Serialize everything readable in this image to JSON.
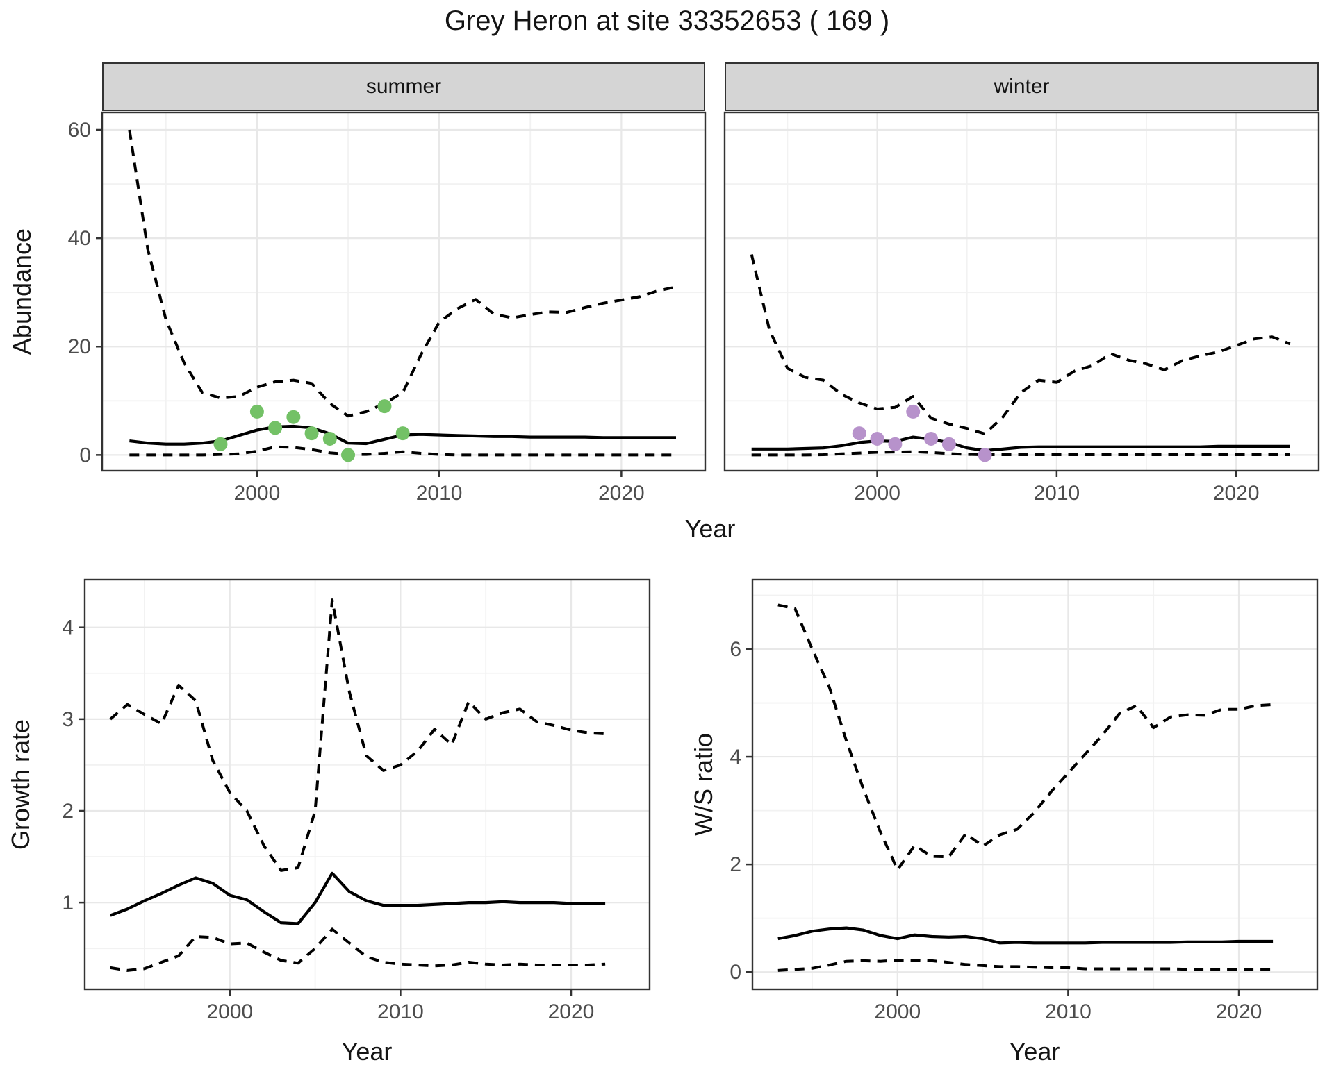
{
  "title": "Grey Heron at site 33352653 ( 169 )",
  "colors": {
    "summer_points": "#73c166",
    "winter_points": "#b792cb",
    "strip_bg": "#d5d5d5",
    "strip_border": "#333333",
    "panel_border": "#333333",
    "grid_major": "#e8e8e8",
    "grid_minor": "#f2f2f2",
    "line": "#000000",
    "tick_label": "#4d4d4d",
    "background": "#ffffff"
  },
  "chart_data": [
    {
      "type": "line",
      "facet_label": "summer",
      "xlabel": "Year",
      "ylabel": "Abundance",
      "xlim": [
        1991.5,
        2024.6
      ],
      "ylim": [
        -2.9,
        63.2
      ],
      "xticks": [
        2000,
        2010,
        2020
      ],
      "yticks": [
        0,
        20,
        40,
        60
      ],
      "xminor": [
        1995,
        2005,
        2015
      ],
      "yminor": [
        10,
        30,
        50
      ],
      "grid": "on",
      "legend_position": "none",
      "x": [
        1993,
        1994,
        1995,
        1996,
        1997,
        1998,
        1999,
        2000,
        2001,
        2002,
        2003,
        2004,
        2005,
        2006,
        2007,
        2008,
        2009,
        2010,
        2011,
        2012,
        2013,
        2014,
        2015,
        2016,
        2017,
        2018,
        2019,
        2020,
        2021,
        2022,
        2023
      ],
      "series": [
        {
          "name": "upper_ci",
          "style": "dashed",
          "values": [
            60,
            38,
            25,
            17,
            11.5,
            10.5,
            10.8,
            12.5,
            13.5,
            13.8,
            13.2,
            9.5,
            7.2,
            8.0,
            9.5,
            11.5,
            18.5,
            24.5,
            27.0,
            28.7,
            26.0,
            25.3,
            25.9,
            26.4,
            26.3,
            27.2,
            28.0,
            28.6,
            29.2,
            30.3,
            31.0
          ]
        },
        {
          "name": "mean",
          "style": "solid",
          "values": [
            2.6,
            2.2,
            2.0,
            2.0,
            2.2,
            2.6,
            3.6,
            4.6,
            5.2,
            5.3,
            5.0,
            3.9,
            2.2,
            2.1,
            2.9,
            3.7,
            3.8,
            3.7,
            3.6,
            3.5,
            3.4,
            3.4,
            3.3,
            3.3,
            3.3,
            3.3,
            3.2,
            3.2,
            3.2,
            3.2,
            3.2
          ]
        },
        {
          "name": "lower_ci",
          "style": "dashed",
          "values": [
            0,
            0,
            0,
            0,
            0,
            0.1,
            0.2,
            0.7,
            1.5,
            1.4,
            1.0,
            0.4,
            0.1,
            0.1,
            0.3,
            0.6,
            0.3,
            0.1,
            0,
            0,
            0,
            0,
            0,
            0,
            0,
            0,
            0,
            0,
            0,
            0,
            0
          ]
        }
      ],
      "points": {
        "name": "summer_observations",
        "color": "#73c166",
        "data": [
          [
            1998,
            2
          ],
          [
            2000,
            8
          ],
          [
            2001,
            5
          ],
          [
            2002,
            7
          ],
          [
            2003,
            4
          ],
          [
            2004,
            3
          ],
          [
            2005,
            0
          ],
          [
            2007,
            9
          ],
          [
            2008,
            4
          ]
        ]
      }
    },
    {
      "type": "line",
      "facet_label": "winter",
      "xlabel": "Year",
      "ylabel": "Abundance",
      "xlim": [
        1991.5,
        2024.6
      ],
      "ylim": [
        -2.9,
        63.2
      ],
      "xticks": [
        2000,
        2010,
        2020
      ],
      "yticks": [
        0,
        20,
        40,
        60
      ],
      "xminor": [
        1995,
        2005,
        2015
      ],
      "yminor": [
        10,
        30,
        50
      ],
      "grid": "on",
      "legend_position": "none",
      "x": [
        1993,
        1994,
        1995,
        1996,
        1997,
        1998,
        1999,
        2000,
        2001,
        2002,
        2003,
        2004,
        2005,
        2006,
        2007,
        2008,
        2009,
        2010,
        2011,
        2012,
        2013,
        2014,
        2015,
        2016,
        2017,
        2018,
        2019,
        2020,
        2021,
        2022,
        2023
      ],
      "series": [
        {
          "name": "upper_ci",
          "style": "dashed",
          "values": [
            37,
            23,
            16,
            14.3,
            13.8,
            11.2,
            9.6,
            8.5,
            8.8,
            10.8,
            6.8,
            5.7,
            4.9,
            3.9,
            7.0,
            11.5,
            13.8,
            13.4,
            15.5,
            16.5,
            18.7,
            17.5,
            16.8,
            15.7,
            17.4,
            18.3,
            19.0,
            20.2,
            21.4,
            21.8,
            20.5
          ]
        },
        {
          "name": "mean",
          "style": "solid",
          "values": [
            1.1,
            1.1,
            1.1,
            1.2,
            1.3,
            1.7,
            2.3,
            2.6,
            2.5,
            3.3,
            2.9,
            2.3,
            1.3,
            0.8,
            1.1,
            1.4,
            1.5,
            1.5,
            1.5,
            1.5,
            1.5,
            1.5,
            1.5,
            1.5,
            1.5,
            1.5,
            1.6,
            1.6,
            1.6,
            1.6,
            1.6
          ]
        },
        {
          "name": "lower_ci",
          "style": "dashed",
          "values": [
            0,
            0,
            0,
            0,
            0.05,
            0.2,
            0.35,
            0.5,
            0.55,
            0.6,
            0.45,
            0.25,
            0.1,
            0.05,
            0.05,
            0.05,
            0.05,
            0.05,
            0.05,
            0.05,
            0.05,
            0.05,
            0.05,
            0.05,
            0.05,
            0.05,
            0.05,
            0.05,
            0.05,
            0.05,
            0.05
          ]
        }
      ],
      "points": {
        "name": "winter_observations",
        "color": "#b792cb",
        "data": [
          [
            1999,
            4
          ],
          [
            2000,
            3
          ],
          [
            2001,
            2
          ],
          [
            2002,
            8
          ],
          [
            2003,
            3
          ],
          [
            2004,
            2
          ],
          [
            2006,
            0
          ]
        ]
      }
    },
    {
      "type": "line",
      "facet_label": null,
      "xlabel": "Year",
      "ylabel": "Growth rate",
      "xlim": [
        1991.5,
        2024.6
      ],
      "ylim": [
        0.055,
        4.52
      ],
      "xticks": [
        2000,
        2010,
        2020
      ],
      "yticks": [
        1,
        2,
        3,
        4
      ],
      "xminor": [
        1995,
        2005,
        2015
      ],
      "yminor": [
        0.5,
        1.5,
        2.5,
        3.5
      ],
      "grid": "on",
      "legend_position": "none",
      "x": [
        1993,
        1994,
        1995,
        1996,
        1997,
        1998,
        1999,
        2000,
        2001,
        2002,
        2003,
        2004,
        2005,
        2006,
        2007,
        2008,
        2009,
        2010,
        2011,
        2012,
        2013,
        2014,
        2015,
        2016,
        2017,
        2018,
        2019,
        2020,
        2021,
        2022
      ],
      "series": [
        {
          "name": "upper_ci",
          "style": "dashed",
          "values": [
            3.0,
            3.16,
            3.05,
            2.95,
            3.37,
            3.2,
            2.55,
            2.2,
            2.0,
            1.62,
            1.35,
            1.38,
            2.0,
            4.3,
            3.3,
            2.6,
            2.44,
            2.5,
            2.65,
            2.89,
            2.72,
            3.19,
            3.0,
            3.07,
            3.11,
            2.97,
            2.93,
            2.88,
            2.85,
            2.84
          ]
        },
        {
          "name": "mean",
          "style": "solid",
          "values": [
            0.86,
            0.93,
            1.02,
            1.1,
            1.19,
            1.27,
            1.21,
            1.08,
            1.03,
            0.9,
            0.78,
            0.77,
            1.0,
            1.32,
            1.12,
            1.02,
            0.97,
            0.97,
            0.97,
            0.98,
            0.99,
            1.0,
            1.0,
            1.01,
            1.0,
            1.0,
            1.0,
            0.99,
            0.99,
            0.99
          ]
        },
        {
          "name": "lower_ci",
          "style": "dashed",
          "values": [
            0.29,
            0.26,
            0.28,
            0.35,
            0.42,
            0.63,
            0.62,
            0.55,
            0.56,
            0.46,
            0.37,
            0.34,
            0.5,
            0.71,
            0.56,
            0.41,
            0.35,
            0.33,
            0.32,
            0.31,
            0.32,
            0.35,
            0.33,
            0.32,
            0.33,
            0.32,
            0.32,
            0.32,
            0.32,
            0.33
          ]
        }
      ],
      "points": null
    },
    {
      "type": "line",
      "facet_label": null,
      "xlabel": "Year",
      "ylabel": "W/S ratio",
      "xlim": [
        1991.5,
        2024.6
      ],
      "ylim": [
        -0.32,
        7.29
      ],
      "xticks": [
        2000,
        2010,
        2020
      ],
      "yticks": [
        0,
        2,
        4,
        6
      ],
      "xminor": [
        1995,
        2005,
        2015
      ],
      "yminor": [
        1,
        3,
        5,
        7
      ],
      "grid": "on",
      "legend_position": "none",
      "x": [
        1993,
        1994,
        1995,
        1996,
        1997,
        1998,
        1999,
        2000,
        2001,
        2002,
        2003,
        2004,
        2005,
        2006,
        2007,
        2008,
        2009,
        2010,
        2011,
        2012,
        2013,
        2014,
        2015,
        2016,
        2017,
        2018,
        2019,
        2020,
        2021,
        2022
      ],
      "series": [
        {
          "name": "upper_ci",
          "style": "dashed",
          "values": [
            6.82,
            6.75,
            6.0,
            5.3,
            4.3,
            3.4,
            2.6,
            1.9,
            2.35,
            2.15,
            2.14,
            2.57,
            2.34,
            2.55,
            2.65,
            2.96,
            3.35,
            3.7,
            4.05,
            4.4,
            4.8,
            4.95,
            4.54,
            4.74,
            4.78,
            4.77,
            4.88,
            4.88,
            4.95,
            4.97
          ]
        },
        {
          "name": "mean",
          "style": "solid",
          "values": [
            0.62,
            0.68,
            0.76,
            0.8,
            0.82,
            0.78,
            0.68,
            0.62,
            0.69,
            0.66,
            0.65,
            0.66,
            0.62,
            0.54,
            0.55,
            0.54,
            0.54,
            0.54,
            0.54,
            0.55,
            0.55,
            0.55,
            0.55,
            0.55,
            0.56,
            0.56,
            0.56,
            0.57,
            0.57,
            0.57
          ]
        },
        {
          "name": "lower_ci",
          "style": "dashed",
          "values": [
            0.03,
            0.05,
            0.07,
            0.13,
            0.2,
            0.21,
            0.2,
            0.22,
            0.22,
            0.21,
            0.18,
            0.14,
            0.12,
            0.1,
            0.1,
            0.09,
            0.08,
            0.08,
            0.06,
            0.06,
            0.06,
            0.06,
            0.06,
            0.06,
            0.05,
            0.05,
            0.05,
            0.05,
            0.05,
            0.05
          ]
        }
      ],
      "points": null
    }
  ]
}
